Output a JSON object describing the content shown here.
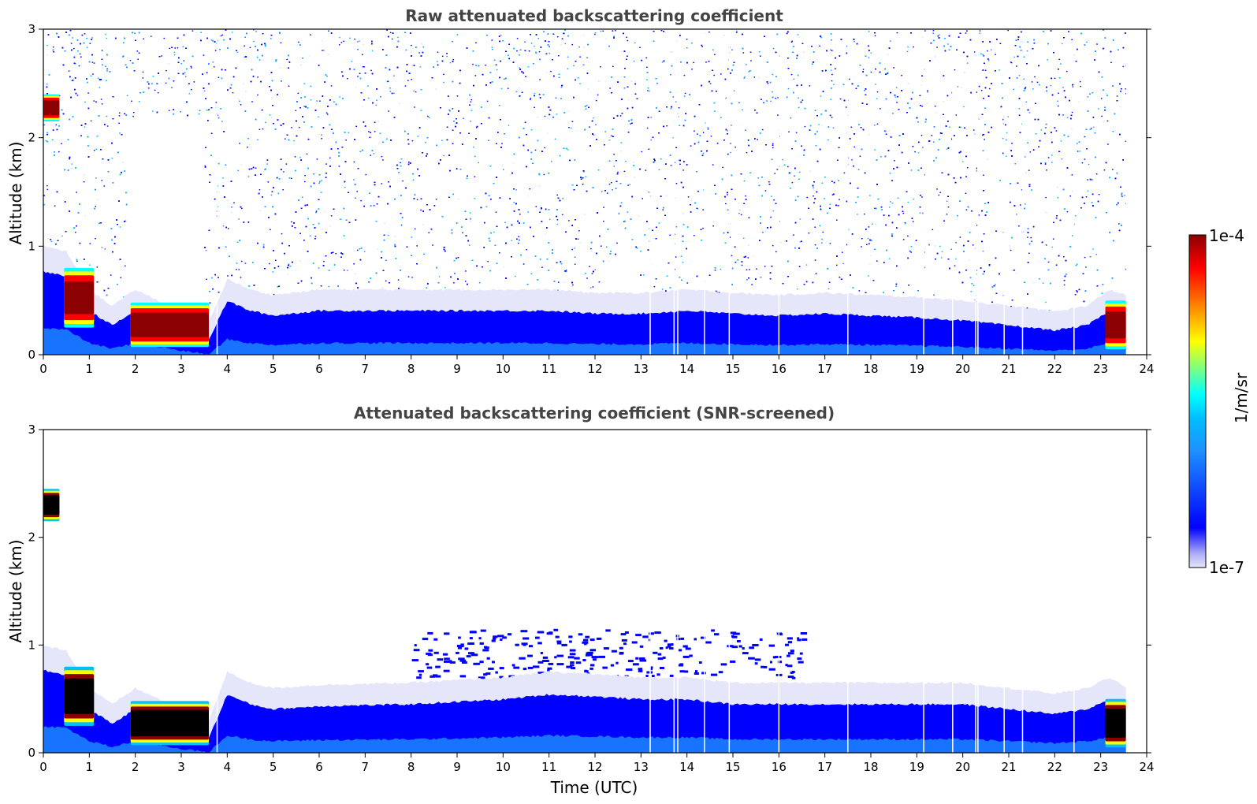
{
  "colors": {
    "colormap": [
      "#e6e6fa",
      "#0000ff",
      "#1e90ff",
      "#00bfff",
      "#00ffff",
      "#7fff7f",
      "#ffff00",
      "#ff8c00",
      "#ff0000",
      "#8b0000"
    ],
    "screened_core": "#000000",
    "title_text": "#444444"
  },
  "chart_data": [
    {
      "type": "heatmap",
      "title": "Raw attenuated backscattering coefficient",
      "xlabel": "",
      "ylabel": "Altitude (km)",
      "xlim": [
        0,
        24
      ],
      "ylim": [
        0,
        3
      ],
      "x_ticks": [
        0,
        1,
        2,
        3,
        4,
        5,
        6,
        7,
        8,
        9,
        10,
        11,
        12,
        13,
        14,
        15,
        16,
        17,
        18,
        19,
        20,
        21,
        22,
        23,
        24
      ],
      "y_ticks": [
        0,
        1,
        2,
        3
      ],
      "data_end_time": 23.55,
      "boundary_layer_top_km": [
        [
          0,
          0.85
        ],
        [
          0.5,
          0.8
        ],
        [
          1,
          0.45
        ],
        [
          1.5,
          0.3
        ],
        [
          2,
          0.45
        ],
        [
          3,
          0.25
        ],
        [
          3.6,
          0.15
        ],
        [
          4,
          0.55
        ],
        [
          4.5,
          0.45
        ],
        [
          5,
          0.4
        ],
        [
          6,
          0.45
        ],
        [
          8,
          0.45
        ],
        [
          10,
          0.45
        ],
        [
          11,
          0.45
        ],
        [
          12,
          0.42
        ],
        [
          13,
          0.42
        ],
        [
          14,
          0.45
        ],
        [
          15,
          0.42
        ],
        [
          16,
          0.4
        ],
        [
          17,
          0.42
        ],
        [
          18,
          0.4
        ],
        [
          19,
          0.38
        ],
        [
          20,
          0.35
        ],
        [
          21,
          0.3
        ],
        [
          22,
          0.25
        ],
        [
          22.7,
          0.3
        ],
        [
          23.2,
          0.45
        ],
        [
          23.55,
          0.4
        ]
      ],
      "strong_backscatter_layers": [
        {
          "t_start": 0.0,
          "t_end": 0.35,
          "alt_bottom_km": 2.15,
          "alt_top_km": 2.4
        },
        {
          "t_start": 0.45,
          "t_end": 1.1,
          "alt_bottom_km": 0.25,
          "alt_top_km": 0.8
        },
        {
          "t_start": 1.9,
          "t_end": 3.6,
          "alt_bottom_km": 0.07,
          "alt_top_km": 0.48
        },
        {
          "t_start": 23.1,
          "t_end": 23.55,
          "alt_bottom_km": 0.05,
          "alt_top_km": 0.5
        }
      ],
      "no_signal_periods": [
        [
          1.8,
          3.5
        ]
      ],
      "data_gaps_utc": [
        3.78,
        13.2,
        13.72,
        13.8,
        14.38,
        14.92,
        16.0,
        17.5,
        19.15,
        19.78,
        20.28,
        20.33,
        20.9,
        21.3,
        22.42
      ]
    },
    {
      "type": "heatmap",
      "title": "Attenuated backscattering coefficient (SNR-screened)",
      "xlabel": "Time (UTC)",
      "ylabel": "Altitude (km)",
      "xlim": [
        0,
        24
      ],
      "ylim": [
        0,
        3
      ],
      "x_ticks": [
        0,
        1,
        2,
        3,
        4,
        5,
        6,
        7,
        8,
        9,
        10,
        11,
        12,
        13,
        14,
        15,
        16,
        17,
        18,
        19,
        20,
        21,
        22,
        23,
        24
      ],
      "y_ticks": [
        0,
        1,
        2,
        3
      ],
      "data_end_time": 23.55,
      "boundary_layer_top_km": [
        [
          0,
          0.85
        ],
        [
          0.5,
          0.8
        ],
        [
          1,
          0.45
        ],
        [
          1.5,
          0.3
        ],
        [
          2,
          0.45
        ],
        [
          3,
          0.25
        ],
        [
          3.6,
          0.15
        ],
        [
          4,
          0.6
        ],
        [
          4.5,
          0.5
        ],
        [
          5,
          0.45
        ],
        [
          6,
          0.48
        ],
        [
          8,
          0.5
        ],
        [
          10,
          0.55
        ],
        [
          11,
          0.6
        ],
        [
          12,
          0.58
        ],
        [
          13,
          0.55
        ],
        [
          14,
          0.55
        ],
        [
          15,
          0.5
        ],
        [
          16,
          0.5
        ],
        [
          17,
          0.5
        ],
        [
          18,
          0.5
        ],
        [
          19,
          0.5
        ],
        [
          20,
          0.5
        ],
        [
          21,
          0.45
        ],
        [
          22,
          0.4
        ],
        [
          22.7,
          0.45
        ],
        [
          23.2,
          0.55
        ],
        [
          23.55,
          0.45
        ]
      ],
      "strong_backscatter_layers": [
        {
          "t_start": 0.0,
          "t_end": 0.35,
          "alt_bottom_km": 2.15,
          "alt_top_km": 2.45
        },
        {
          "t_start": 0.45,
          "t_end": 1.1,
          "alt_bottom_km": 0.25,
          "alt_top_km": 0.8
        },
        {
          "t_start": 1.9,
          "t_end": 3.6,
          "alt_bottom_km": 0.07,
          "alt_top_km": 0.48
        },
        {
          "t_start": 23.1,
          "t_end": 23.55,
          "alt_bottom_km": 0.05,
          "alt_top_km": 0.5
        }
      ],
      "scattered_cloud_region": {
        "t_start": 8.0,
        "t_end": 16.5,
        "alt_bottom_km": 0.7,
        "alt_top_km": 1.15
      },
      "data_gaps_utc": [
        3.78,
        13.2,
        13.72,
        13.8,
        14.38,
        14.92,
        16.0,
        17.5,
        19.15,
        19.78,
        20.28,
        20.33,
        20.9,
        21.3,
        22.42
      ]
    }
  ],
  "colorbar": {
    "label": "1/m/sr",
    "top_label": "1e-4",
    "bottom_label": "1e-7",
    "range": [
      1e-07,
      0.0001
    ],
    "scale": "log"
  }
}
